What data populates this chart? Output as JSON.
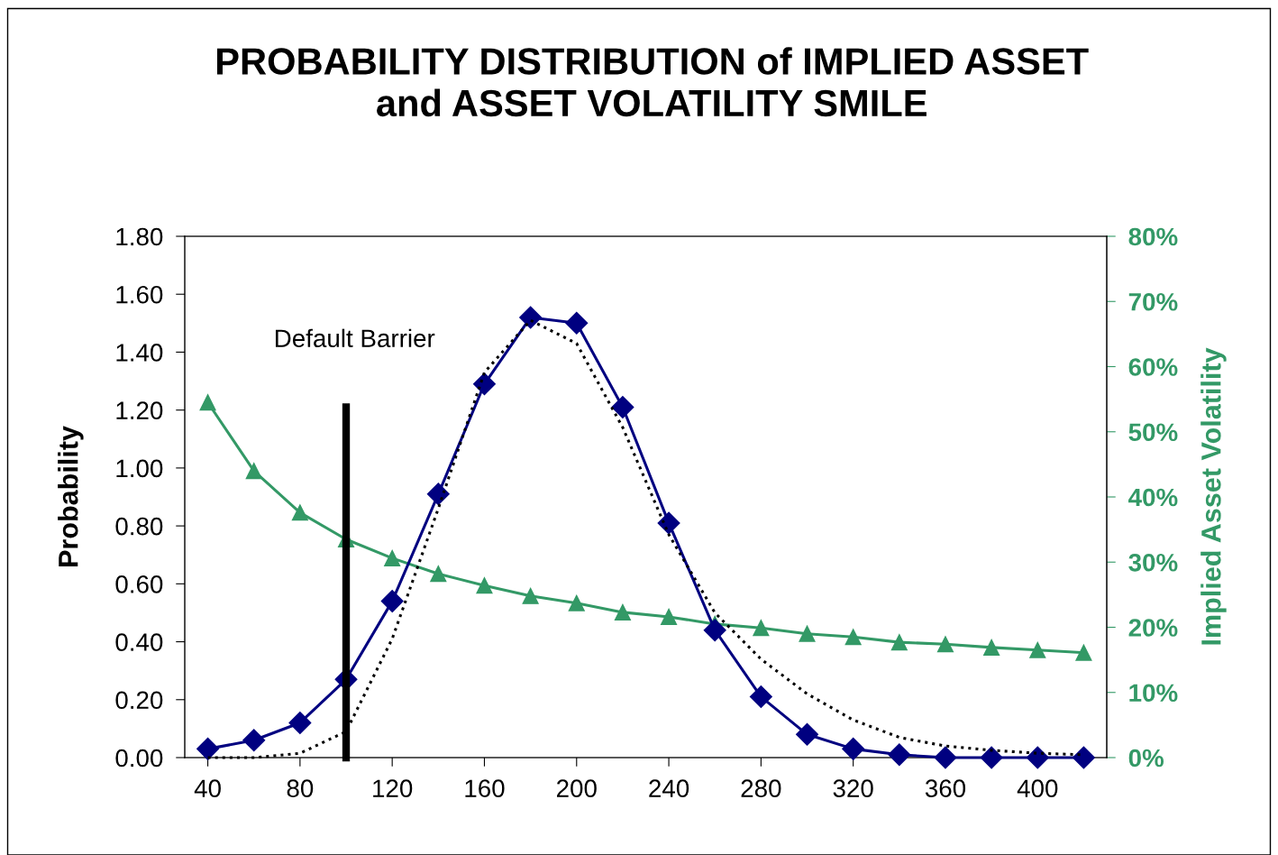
{
  "chart_data": {
    "type": "line",
    "title": "PROBABILITY DISTRIBUTION of IMPLIED ASSET\nand ASSET VOLATILITY SMILE",
    "ylabel": "Probability",
    "y2label": "Implied Asset Volatility",
    "x": [
      40,
      60,
      80,
      100,
      120,
      140,
      160,
      180,
      200,
      220,
      240,
      260,
      280,
      300,
      320,
      340,
      360,
      380,
      400,
      420
    ],
    "xlim": [
      30,
      430
    ],
    "xticks": [
      40,
      80,
      120,
      160,
      200,
      240,
      280,
      320,
      360,
      400
    ],
    "ylim": [
      0,
      1.8
    ],
    "yticks": [
      {
        "value": 0,
        "label": "0.00"
      },
      {
        "value": 0.2,
        "label": "0.20"
      },
      {
        "value": 0.4,
        "label": "0.40"
      },
      {
        "value": 0.6,
        "label": "0.60"
      },
      {
        "value": 0.8,
        "label": "0.80"
      },
      {
        "value": 1.0,
        "label": "1.00"
      },
      {
        "value": 1.2,
        "label": "1.20"
      },
      {
        "value": 1.4,
        "label": "1.40"
      },
      {
        "value": 1.6,
        "label": "1.60"
      },
      {
        "value": 1.8,
        "label": "1.80"
      }
    ],
    "y2lim": [
      0,
      80
    ],
    "y2ticks": [
      {
        "value": 0,
        "label": "0%"
      },
      {
        "value": 10,
        "label": "10%"
      },
      {
        "value": 20,
        "label": "20%"
      },
      {
        "value": 30,
        "label": "30%"
      },
      {
        "value": 40,
        "label": "40%"
      },
      {
        "value": 50,
        "label": "50%"
      },
      {
        "value": 60,
        "label": "60%"
      },
      {
        "value": 70,
        "label": "70%"
      },
      {
        "value": 80,
        "label": "80%"
      }
    ],
    "grid": false,
    "legend": false,
    "series": [
      {
        "color": "#000000",
        "line_style": "dotted",
        "marker": "none",
        "values": [
          0,
          0,
          0.015,
          0.09,
          0.41,
          0.86,
          1.33,
          1.51,
          1.43,
          1.14,
          0.77,
          0.5,
          0.34,
          0.22,
          0.13,
          0.07,
          0.04,
          0.025,
          0.015,
          0.01
        ]
      },
      {
        "color": "#000080",
        "line_style": "solid",
        "marker": "diamond",
        "values": [
          0.03,
          0.06,
          0.12,
          0.27,
          0.54,
          0.91,
          1.29,
          1.52,
          1.5,
          1.21,
          0.81,
          0.44,
          0.21,
          0.08,
          0.03,
          0.01,
          0,
          0,
          0,
          0
        ]
      },
      {
        "color": "#339966",
        "line_style": "solid",
        "marker": "triangle",
        "axis": "y2",
        "values": [
          54.5,
          44,
          37.6,
          33.5,
          30.6,
          28.2,
          26.4,
          24.8,
          23.7,
          22.3,
          21.6,
          20.5,
          19.9,
          19,
          18.5,
          17.7,
          17.4,
          16.9,
          16.5,
          16.1
        ]
      },
      {
        "color": "#000000",
        "line_style": "solid",
        "marker": "none",
        "x": [
          100,
          100
        ],
        "values": [
          0,
          1.21
        ]
      }
    ],
    "annotations": [
      "Default Barrier"
    ]
  }
}
